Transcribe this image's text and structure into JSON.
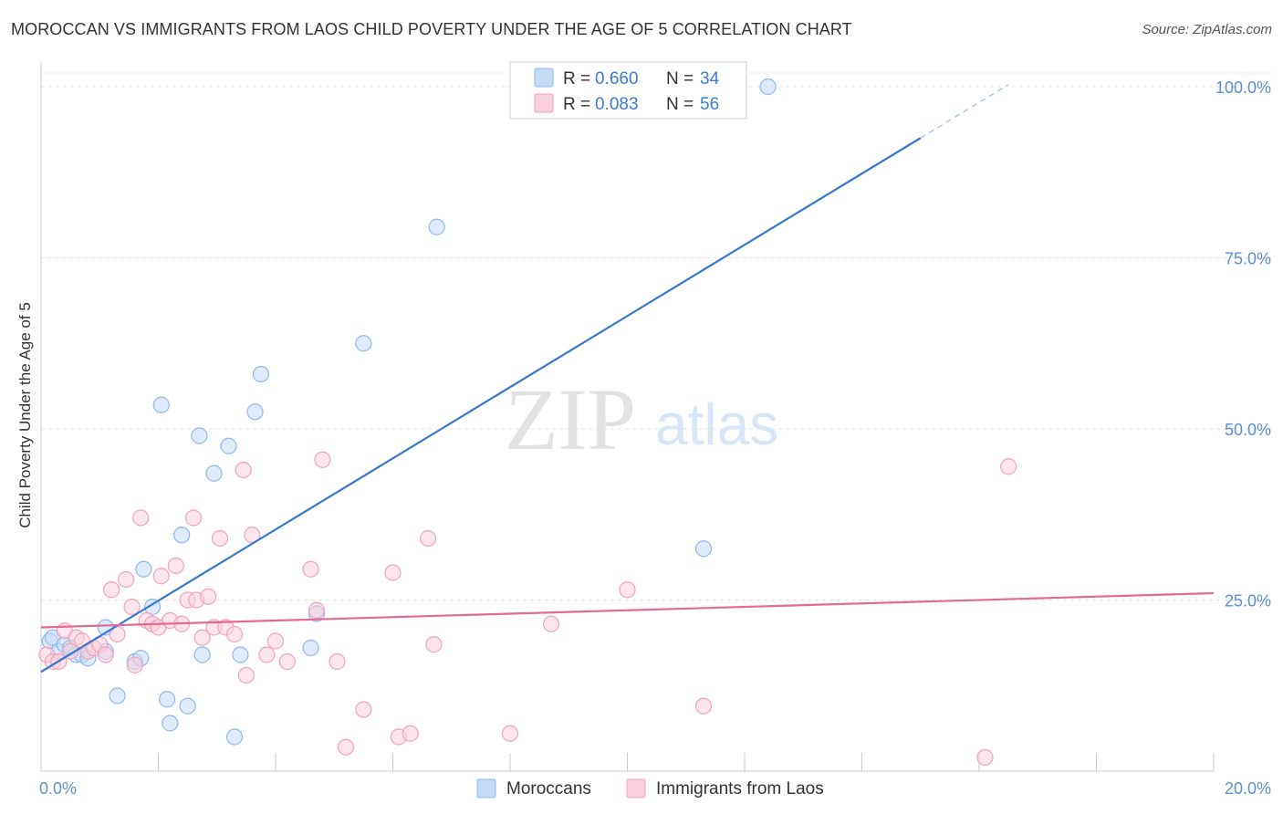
{
  "title": "MOROCCAN VS IMMIGRANTS FROM LAOS CHILD POVERTY UNDER THE AGE OF 5 CORRELATION CHART",
  "source": "Source: ZipAtlas.com",
  "watermark": {
    "zip": "ZIP",
    "atlas": "atlas"
  },
  "chart_data": {
    "type": "scatter",
    "title": "MOROCCAN VS IMMIGRANTS FROM LAOS CHILD POVERTY UNDER THE AGE OF 5 CORRELATION CHART",
    "xlabel": "",
    "ylabel": "Child Poverty Under the Age of 5",
    "xlim": [
      0,
      20
    ],
    "ylim": [
      0,
      102
    ],
    "x_tick_labels": [
      {
        "value": 0,
        "label": "0.0%"
      },
      {
        "value": 20,
        "label": "20.0%"
      }
    ],
    "y_tick_labels": [
      {
        "value": 25,
        "label": "25.0%"
      },
      {
        "value": 50,
        "label": "50.0%"
      },
      {
        "value": 75,
        "label": "75.0%"
      },
      {
        "value": 100,
        "label": "100.0%"
      }
    ],
    "legend": [
      {
        "name": "Moroccans",
        "r_label": "R =",
        "r": "0.660",
        "n_label": "N =",
        "n": "34",
        "color": "#8fb8ec",
        "fill": "#c5dbf5"
      },
      {
        "name": "Immigrants from Laos",
        "r_label": "R =",
        "r": "0.083",
        "n_label": "N =",
        "n": "56",
        "color": "#f0a3bb",
        "fill": "#f9d0dc"
      }
    ],
    "series": [
      {
        "name": "Moroccans",
        "color": "#8fb8ec",
        "trend": {
          "x0": 0,
          "y0": 14.5,
          "x1": 15,
          "y1": 92.5,
          "dash_to_x": 16.5,
          "line_color": "#3a78d0"
        },
        "points": [
          [
            0.15,
            19.0
          ],
          [
            0.2,
            19.5
          ],
          [
            0.3,
            17.5
          ],
          [
            0.4,
            18.5
          ],
          [
            0.5,
            18.0
          ],
          [
            0.6,
            17.0
          ],
          [
            0.7,
            17.0
          ],
          [
            0.8,
            16.5
          ],
          [
            1.1,
            17.5
          ],
          [
            1.1,
            21.0
          ],
          [
            1.3,
            11.0
          ],
          [
            1.6,
            16.0
          ],
          [
            1.7,
            16.5
          ],
          [
            1.75,
            29.5
          ],
          [
            1.9,
            24.0
          ],
          [
            2.05,
            53.5
          ],
          [
            2.15,
            10.5
          ],
          [
            2.2,
            7.0
          ],
          [
            2.4,
            34.5
          ],
          [
            2.5,
            9.5
          ],
          [
            2.7,
            49.0
          ],
          [
            2.75,
            17.0
          ],
          [
            2.95,
            43.5
          ],
          [
            3.2,
            47.5
          ],
          [
            3.3,
            5.0
          ],
          [
            3.4,
            17.0
          ],
          [
            3.65,
            52.5
          ],
          [
            3.75,
            58.0
          ],
          [
            4.6,
            18.0
          ],
          [
            4.7,
            23.0
          ],
          [
            5.5,
            62.5
          ],
          [
            6.75,
            79.5
          ],
          [
            11.3,
            32.5
          ],
          [
            12.4,
            100.0
          ]
        ]
      },
      {
        "name": "Immigrants from Laos",
        "color": "#f0a3bb",
        "trend": {
          "x0": 0,
          "y0": 21.0,
          "x1": 20,
          "y1": 26.0,
          "line_color": "#e06b94"
        },
        "points": [
          [
            0.1,
            17.0
          ],
          [
            0.2,
            16.0
          ],
          [
            0.3,
            16.0
          ],
          [
            0.4,
            20.5
          ],
          [
            0.5,
            17.5
          ],
          [
            0.6,
            19.5
          ],
          [
            0.7,
            19.0
          ],
          [
            0.8,
            17.5
          ],
          [
            0.9,
            18.0
          ],
          [
            1.0,
            18.5
          ],
          [
            1.1,
            17.0
          ],
          [
            1.2,
            26.5
          ],
          [
            1.3,
            20.0
          ],
          [
            1.45,
            28.0
          ],
          [
            1.55,
            24.0
          ],
          [
            1.6,
            15.5
          ],
          [
            1.7,
            37.0
          ],
          [
            1.8,
            22.0
          ],
          [
            1.9,
            21.5
          ],
          [
            2.0,
            21.0
          ],
          [
            2.05,
            28.5
          ],
          [
            2.2,
            22.0
          ],
          [
            2.3,
            30.0
          ],
          [
            2.4,
            21.5
          ],
          [
            2.5,
            25.0
          ],
          [
            2.6,
            37.0
          ],
          [
            2.65,
            25.0
          ],
          [
            2.75,
            19.5
          ],
          [
            2.85,
            25.5
          ],
          [
            2.95,
            21.0
          ],
          [
            3.05,
            34.0
          ],
          [
            3.15,
            21.0
          ],
          [
            3.3,
            20.0
          ],
          [
            3.45,
            44.0
          ],
          [
            3.5,
            14.0
          ],
          [
            3.6,
            34.5
          ],
          [
            3.85,
            17.0
          ],
          [
            4.0,
            19.0
          ],
          [
            4.2,
            16.0
          ],
          [
            4.6,
            29.5
          ],
          [
            4.7,
            23.5
          ],
          [
            4.8,
            45.5
          ],
          [
            5.05,
            16.0
          ],
          [
            5.2,
            3.5
          ],
          [
            5.5,
            9.0
          ],
          [
            6.0,
            29.0
          ],
          [
            6.1,
            5.0
          ],
          [
            6.3,
            5.5
          ],
          [
            6.6,
            34.0
          ],
          [
            6.7,
            18.5
          ],
          [
            8.0,
            5.5
          ],
          [
            8.7,
            21.5
          ],
          [
            10.0,
            26.5
          ],
          [
            11.3,
            9.5
          ],
          [
            16.5,
            44.5
          ],
          [
            16.1,
            2.0
          ]
        ]
      }
    ]
  }
}
